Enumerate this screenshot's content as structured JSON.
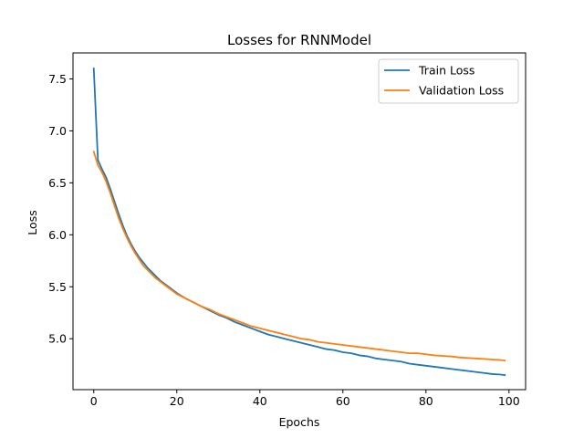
{
  "chart_data": {
    "type": "line",
    "title": "Losses for RNNModel",
    "xlabel": "Epochs",
    "ylabel": "Loss",
    "xlim": [
      -5.0,
      104.0
    ],
    "ylim": [
      4.51,
      7.75
    ],
    "xticks": [
      0,
      20,
      40,
      60,
      80,
      100
    ],
    "yticks": [
      5.0,
      5.5,
      6.0,
      6.5,
      7.0,
      7.5
    ],
    "ytick_labels": [
      "5.0",
      "5.5",
      "6.0",
      "6.5",
      "7.0",
      "7.5"
    ],
    "grid": false,
    "legend_position": "top-right",
    "series": [
      {
        "name": "Train Loss",
        "color": "#1f77b4",
        "points": [
          [
            0,
            7.6
          ],
          [
            1,
            6.72
          ],
          [
            2,
            6.63
          ],
          [
            3,
            6.55
          ],
          [
            4,
            6.44
          ],
          [
            5,
            6.32
          ],
          [
            6,
            6.2
          ],
          [
            7,
            6.09
          ],
          [
            8,
            5.99
          ],
          [
            9,
            5.91
          ],
          [
            10,
            5.84
          ],
          [
            11,
            5.78
          ],
          [
            12,
            5.73
          ],
          [
            13,
            5.68
          ],
          [
            14,
            5.64
          ],
          [
            15,
            5.6
          ],
          [
            16,
            5.56
          ],
          [
            17,
            5.53
          ],
          [
            18,
            5.5
          ],
          [
            19,
            5.47
          ],
          [
            20,
            5.44
          ],
          [
            22,
            5.39
          ],
          [
            24,
            5.35
          ],
          [
            26,
            5.31
          ],
          [
            28,
            5.27
          ],
          [
            30,
            5.23
          ],
          [
            32,
            5.2
          ],
          [
            34,
            5.16
          ],
          [
            36,
            5.13
          ],
          [
            38,
            5.1
          ],
          [
            40,
            5.07
          ],
          [
            42,
            5.04
          ],
          [
            44,
            5.02
          ],
          [
            46,
            5.0
          ],
          [
            48,
            4.98
          ],
          [
            50,
            4.96
          ],
          [
            52,
            4.94
          ],
          [
            54,
            4.92
          ],
          [
            56,
            4.9
          ],
          [
            58,
            4.89
          ],
          [
            60,
            4.87
          ],
          [
            62,
            4.86
          ],
          [
            64,
            4.84
          ],
          [
            66,
            4.83
          ],
          [
            68,
            4.81
          ],
          [
            70,
            4.8
          ],
          [
            72,
            4.79
          ],
          [
            74,
            4.78
          ],
          [
            76,
            4.76
          ],
          [
            78,
            4.75
          ],
          [
            80,
            4.74
          ],
          [
            82,
            4.73
          ],
          [
            84,
            4.72
          ],
          [
            86,
            4.71
          ],
          [
            88,
            4.7
          ],
          [
            90,
            4.69
          ],
          [
            92,
            4.68
          ],
          [
            94,
            4.67
          ],
          [
            96,
            4.66
          ],
          [
            98,
            4.655
          ],
          [
            99,
            4.65
          ]
        ]
      },
      {
        "name": "Validation Loss",
        "color": "#ff7f0e",
        "points": [
          [
            0,
            6.8
          ],
          [
            1,
            6.67
          ],
          [
            2,
            6.6
          ],
          [
            3,
            6.51
          ],
          [
            4,
            6.4
          ],
          [
            5,
            6.28
          ],
          [
            6,
            6.16
          ],
          [
            7,
            6.06
          ],
          [
            8,
            5.97
          ],
          [
            9,
            5.89
          ],
          [
            10,
            5.82
          ],
          [
            11,
            5.76
          ],
          [
            12,
            5.7
          ],
          [
            13,
            5.66
          ],
          [
            14,
            5.62
          ],
          [
            15,
            5.58
          ],
          [
            16,
            5.55
          ],
          [
            17,
            5.52
          ],
          [
            18,
            5.49
          ],
          [
            19,
            5.46
          ],
          [
            20,
            5.43
          ],
          [
            22,
            5.39
          ],
          [
            24,
            5.35
          ],
          [
            26,
            5.31
          ],
          [
            28,
            5.28
          ],
          [
            30,
            5.24
          ],
          [
            32,
            5.21
          ],
          [
            34,
            5.18
          ],
          [
            36,
            5.15
          ],
          [
            38,
            5.12
          ],
          [
            40,
            5.1
          ],
          [
            42,
            5.08
          ],
          [
            44,
            5.06
          ],
          [
            46,
            5.04
          ],
          [
            48,
            5.02
          ],
          [
            50,
            5.0
          ],
          [
            52,
            4.99
          ],
          [
            54,
            4.97
          ],
          [
            56,
            4.96
          ],
          [
            58,
            4.95
          ],
          [
            60,
            4.94
          ],
          [
            62,
            4.93
          ],
          [
            64,
            4.92
          ],
          [
            66,
            4.91
          ],
          [
            68,
            4.9
          ],
          [
            70,
            4.89
          ],
          [
            72,
            4.88
          ],
          [
            74,
            4.87
          ],
          [
            76,
            4.86
          ],
          [
            78,
            4.86
          ],
          [
            80,
            4.85
          ],
          [
            82,
            4.84
          ],
          [
            84,
            4.835
          ],
          [
            86,
            4.83
          ],
          [
            88,
            4.82
          ],
          [
            90,
            4.815
          ],
          [
            92,
            4.81
          ],
          [
            94,
            4.805
          ],
          [
            96,
            4.8
          ],
          [
            98,
            4.795
          ],
          [
            99,
            4.79
          ]
        ]
      }
    ]
  }
}
